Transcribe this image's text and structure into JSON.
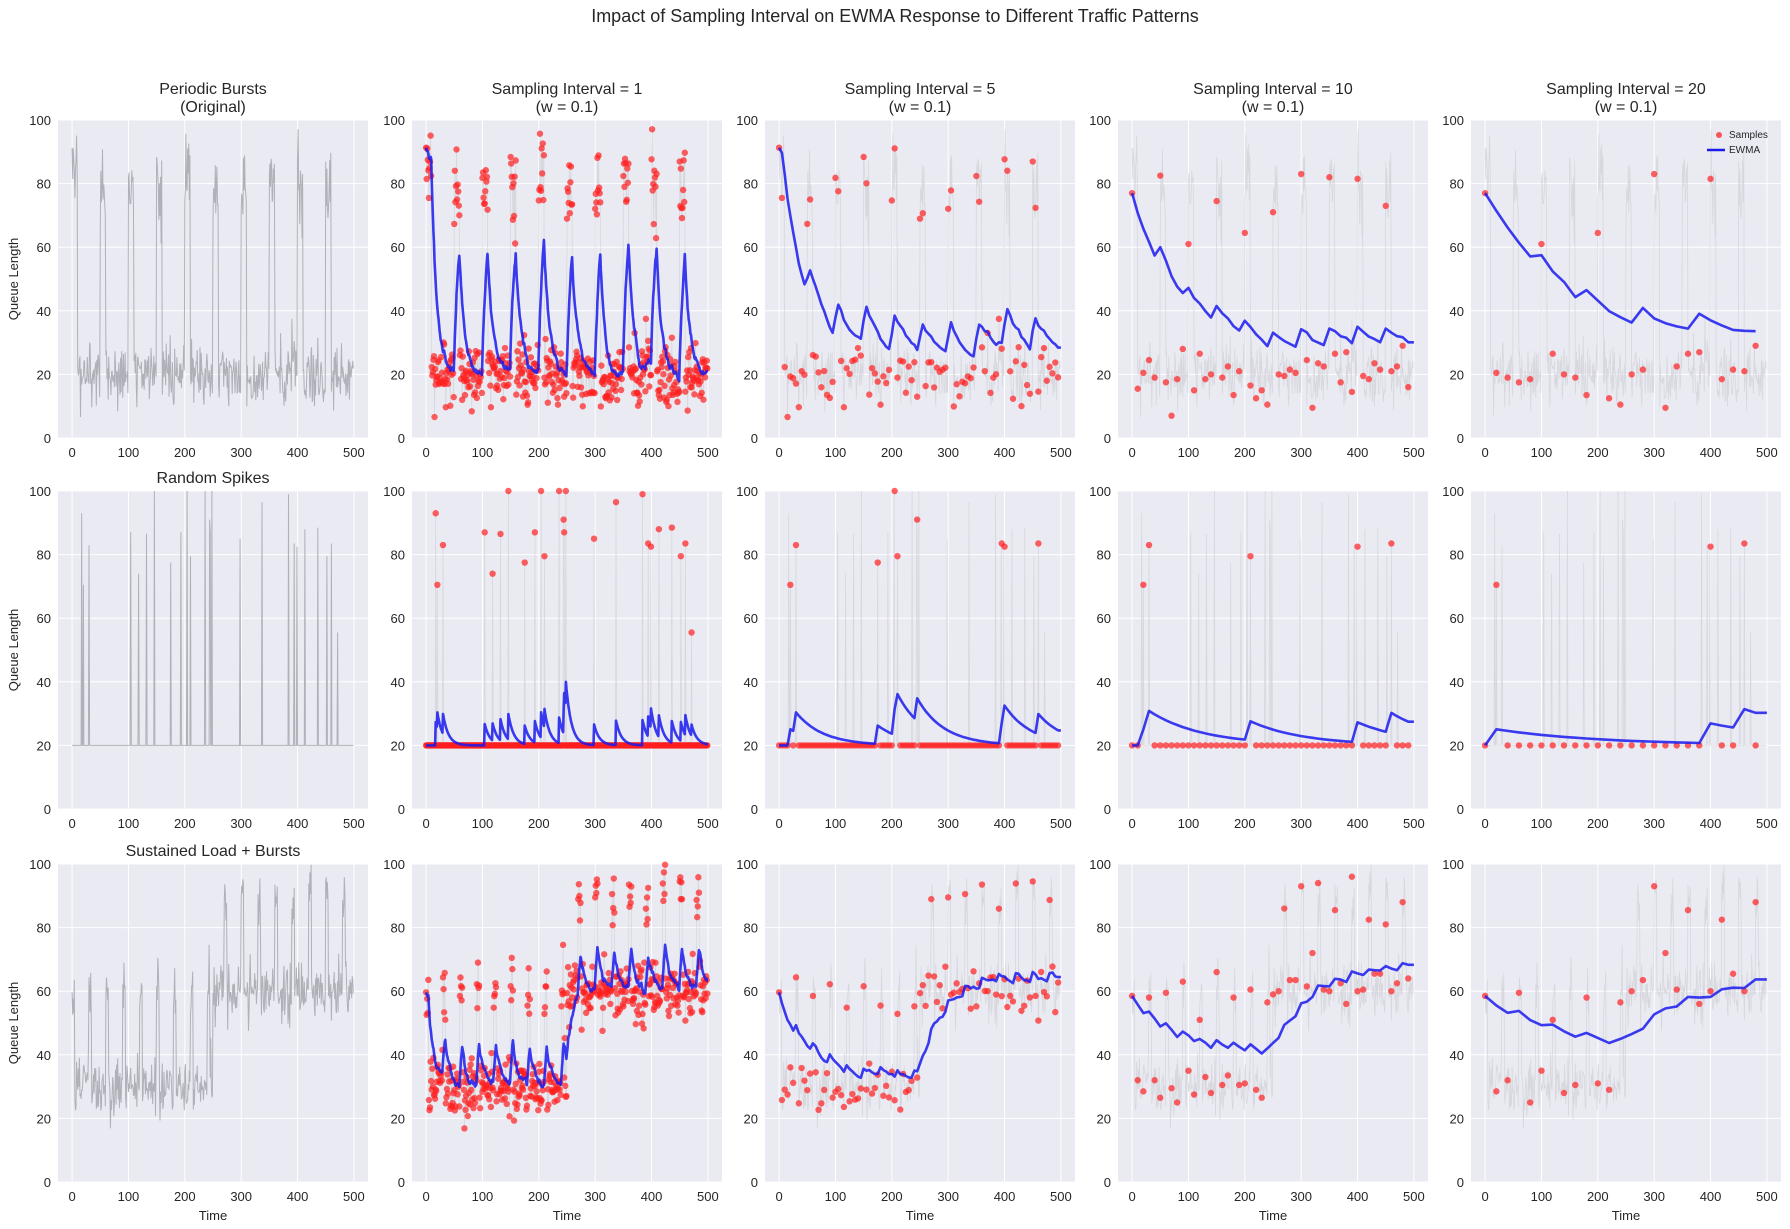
{
  "figure": {
    "title": "Impact of Sampling Interval on EWMA Response to Different Traffic Patterns"
  },
  "colors": {
    "background": "#eaeaf2",
    "grid": "#ffffff",
    "original": "#b0b0b8",
    "original_faint": "#cfcfd4",
    "samples": "#ff2020",
    "ewma": "#1a1aee"
  },
  "legend": {
    "samples_label": "Samples",
    "ewma_label": "EWMA",
    "placement": "top-right",
    "panel": "row0-col4"
  },
  "chart_data": {
    "type": "line",
    "layout": {
      "rows": 3,
      "cols": 5
    },
    "ewma_weight": 0.1,
    "xlim": [
      -25,
      525
    ],
    "ylim": [
      0,
      100
    ],
    "xticks": [
      0,
      100,
      200,
      300,
      400,
      500
    ],
    "yticks": [
      0,
      20,
      40,
      60,
      80,
      100
    ],
    "xlabel": "Time",
    "ylabel": "Queue Length",
    "column_titles": [
      null,
      "Sampling Interval = 1\n(w = 0.1)",
      "Sampling Interval = 5\n(w = 0.1)",
      "Sampling Interval = 10\n(w = 0.1)",
      "Sampling Interval = 20\n(w = 0.1)"
    ],
    "sampling_intervals": [
      1,
      5,
      10,
      20
    ],
    "patterns": [
      {
        "name": "Periodic Bursts",
        "title": "Periodic Bursts\n(Original)",
        "generator": {
          "kind": "periodic",
          "baseline": 20,
          "baseline_noise": 5,
          "burst_period": 50,
          "burst_length": 10,
          "burst_level": 80,
          "burst_noise": 8
        },
        "samples_interval_10": [
          [
            0,
            77
          ],
          [
            10,
            15.5
          ],
          [
            20,
            20.5
          ],
          [
            30,
            24.5
          ],
          [
            40,
            19
          ],
          [
            50,
            82.5
          ],
          [
            60,
            17.5
          ],
          [
            70,
            7
          ],
          [
            80,
            18.5
          ],
          [
            90,
            28
          ],
          [
            100,
            61
          ],
          [
            110,
            15
          ],
          [
            120,
            26.5
          ],
          [
            130,
            18.5
          ],
          [
            140,
            20
          ],
          [
            150,
            74.5
          ],
          [
            160,
            19
          ],
          [
            170,
            22.5
          ],
          [
            180,
            13.5
          ],
          [
            190,
            21
          ],
          [
            200,
            64.5
          ],
          [
            210,
            16.5
          ],
          [
            220,
            12.5
          ],
          [
            230,
            15
          ],
          [
            240,
            10.5
          ],
          [
            250,
            71
          ],
          [
            260,
            20
          ],
          [
            270,
            19.5
          ],
          [
            280,
            21.5
          ],
          [
            290,
            20.5
          ],
          [
            300,
            83
          ],
          [
            310,
            24.5
          ],
          [
            320,
            9.5
          ],
          [
            330,
            23.5
          ],
          [
            340,
            22.5
          ],
          [
            350,
            82
          ],
          [
            360,
            26.5
          ],
          [
            370,
            17.5
          ],
          [
            380,
            27
          ],
          [
            390,
            14.5
          ],
          [
            400,
            81.5
          ],
          [
            410,
            19.5
          ],
          [
            420,
            18.5
          ],
          [
            430,
            23.5
          ],
          [
            440,
            21.5
          ],
          [
            450,
            73
          ],
          [
            460,
            21
          ],
          [
            470,
            22.5
          ],
          [
            480,
            29
          ],
          [
            490,
            16
          ]
        ],
        "ewma_interval_10": [
          77,
          70.8,
          65.8,
          61.7,
          57.4,
          60.0,
          55.8,
          50.9,
          47.6,
          45.6,
          47.2,
          44.0,
          42.3,
          39.9,
          37.9,
          41.5,
          39.2,
          37.6,
          35.2,
          33.8,
          36.9,
          34.9,
          32.6,
          30.9,
          28.9,
          33.1,
          31.8,
          30.5,
          29.6,
          28.7,
          34.2,
          33.2,
          30.8,
          30.0,
          29.2,
          34.4,
          33.6,
          32.0,
          31.5,
          29.8,
          35.0,
          33.4,
          31.9,
          31.1,
          30.1,
          34.4,
          33.1,
          32.0,
          31.7,
          30.1,
          30.1
        ],
        "ewma_interval_20": [
          77,
          71.4,
          66.2,
          61.4,
          57.1,
          57.5,
          52.4,
          49.1,
          44.3,
          46.5,
          43.2,
          39.9,
          38.0,
          36.3,
          40.9,
          37.6,
          36.1,
          35.1,
          34.4,
          39.1,
          37.0,
          35.4,
          34.0,
          33.7,
          33.6
        ],
        "samples_interval_20": [
          [
            0,
            77
          ],
          [
            20,
            20.5
          ],
          [
            40,
            19
          ],
          [
            60,
            17.5
          ],
          [
            80,
            18.5
          ],
          [
            100,
            61
          ],
          [
            120,
            26.5
          ],
          [
            140,
            20
          ],
          [
            160,
            19
          ],
          [
            180,
            13.5
          ],
          [
            200,
            64.5
          ],
          [
            220,
            12.5
          ],
          [
            240,
            10.5
          ],
          [
            260,
            20
          ],
          [
            280,
            21.5
          ],
          [
            300,
            83
          ],
          [
            320,
            9.5
          ],
          [
            340,
            22.5
          ],
          [
            360,
            26.5
          ],
          [
            380,
            27
          ],
          [
            400,
            81.5
          ],
          [
            420,
            18.5
          ],
          [
            440,
            21.5
          ],
          [
            460,
            21
          ],
          [
            480,
            29
          ]
        ]
      },
      {
        "name": "Random Spikes",
        "title": "Random Spikes",
        "generator": {
          "kind": "spikes",
          "baseline": 20
        },
        "spikes": [
          [
            17,
            93
          ],
          [
            20,
            70.5
          ],
          [
            30,
            83
          ],
          [
            104,
            87
          ],
          [
            118,
            74
          ],
          [
            132,
            86.5
          ],
          [
            146,
            100
          ],
          [
            175,
            77.5
          ],
          [
            193,
            87
          ],
          [
            204,
            100
          ],
          [
            210,
            79.5
          ],
          [
            236,
            100
          ],
          [
            244,
            91
          ],
          [
            245,
            87
          ],
          [
            248,
            100
          ],
          [
            298,
            85
          ],
          [
            337,
            96.5
          ],
          [
            384,
            99
          ],
          [
            394,
            83.5
          ],
          [
            399,
            82.5
          ],
          [
            413,
            88
          ],
          [
            436,
            88.5
          ],
          [
            452,
            79.5
          ],
          [
            460,
            83.5
          ],
          [
            471,
            55.5
          ]
        ],
        "samples_interval_5_high": [
          [
            205,
            100
          ],
          [
            245,
            91
          ],
          [
            395,
            83.5
          ],
          [
            400,
            82.5
          ]
        ],
        "samples_interval_10_high": [
          [
            400,
            82.5
          ]
        ],
        "samples_interval_20_high": [
          [
            400,
            82.5
          ]
        ]
      },
      {
        "name": "Sustained Load + Bursts",
        "title": "Sustained Load + Bursts",
        "generator": {
          "kind": "sustained",
          "low_level": 30,
          "high_level": 60,
          "step_time": 250,
          "noise": 5,
          "burst_period": 30,
          "burst_length": 5,
          "burst_add": 30
        },
        "samples_interval_10": [
          [
            0,
            58.5
          ],
          [
            10,
            32
          ],
          [
            20,
            28.5
          ],
          [
            30,
            58
          ],
          [
            40,
            32
          ],
          [
            50,
            26.5
          ],
          [
            60,
            59.5
          ],
          [
            70,
            29.5
          ],
          [
            80,
            25
          ],
          [
            90,
            63
          ],
          [
            100,
            35
          ],
          [
            110,
            27.5
          ],
          [
            120,
            51
          ],
          [
            130,
            33
          ],
          [
            140,
            28
          ],
          [
            150,
            66
          ],
          [
            160,
            30.5
          ],
          [
            170,
            33.5
          ],
          [
            180,
            58
          ],
          [
            190,
            30.5
          ],
          [
            200,
            31
          ],
          [
            210,
            60.5
          ],
          [
            220,
            29
          ],
          [
            230,
            26.5
          ],
          [
            240,
            56.5
          ],
          [
            250,
            59
          ],
          [
            260,
            60
          ],
          [
            270,
            86
          ],
          [
            280,
            63.5
          ],
          [
            290,
            63.5
          ],
          [
            300,
            93
          ],
          [
            310,
            61.5
          ],
          [
            320,
            72
          ],
          [
            330,
            94
          ],
          [
            340,
            60.5
          ],
          [
            350,
            60
          ],
          [
            360,
            85.5
          ],
          [
            370,
            62.5
          ],
          [
            380,
            56
          ],
          [
            390,
            96
          ],
          [
            400,
            60
          ],
          [
            410,
            60.5
          ],
          [
            420,
            82.5
          ],
          [
            430,
            65.5
          ],
          [
            440,
            65.5
          ],
          [
            450,
            81
          ],
          [
            460,
            60
          ],
          [
            470,
            62.5
          ],
          [
            480,
            88
          ],
          [
            490,
            64
          ]
        ],
        "ewma_interval_10": [
          58.5,
          55.8,
          53.1,
          53.6,
          51.4,
          48.9,
          49.9,
          47.9,
          45.6,
          47.3,
          46.1,
          44.3,
          45.0,
          43.8,
          42.2,
          44.6,
          43.2,
          42.2,
          43.8,
          42.5,
          41.4,
          43.3,
          41.9,
          40.4,
          42.0,
          43.7,
          45.3,
          49.4,
          50.8,
          52.1,
          56.2,
          56.7,
          58.2,
          61.8,
          61.6,
          61.5,
          63.9,
          63.7,
          62.9,
          66.2,
          65.6,
          65.1,
          66.8,
          66.6,
          66.5,
          67.9,
          67.1,
          66.6,
          68.8,
          68.3,
          68.3
        ],
        "samples_interval_20": [
          [
            0,
            58.5
          ],
          [
            20,
            28.5
          ],
          [
            40,
            32
          ],
          [
            60,
            59.5
          ],
          [
            80,
            25
          ],
          [
            100,
            35
          ],
          [
            120,
            51
          ],
          [
            140,
            28
          ],
          [
            160,
            30.5
          ],
          [
            180,
            58
          ],
          [
            200,
            31
          ],
          [
            220,
            29
          ],
          [
            240,
            56.5
          ],
          [
            260,
            60
          ],
          [
            280,
            63.5
          ],
          [
            300,
            93
          ],
          [
            320,
            72
          ],
          [
            340,
            60.5
          ],
          [
            360,
            85.5
          ],
          [
            380,
            56
          ],
          [
            400,
            60
          ],
          [
            420,
            82.5
          ],
          [
            440,
            65.5
          ],
          [
            460,
            60
          ],
          [
            480,
            88
          ]
        ],
        "ewma_interval_20": [
          58.5,
          55.5,
          53.2,
          53.8,
          50.9,
          49.3,
          49.5,
          47.4,
          45.7,
          46.9,
          45.3,
          43.7,
          45.0,
          46.5,
          48.2,
          52.7,
          54.6,
          55.2,
          58.2,
          58.0,
          58.2,
          60.6,
          61.1,
          61.0,
          63.7,
          63.7
        ]
      }
    ]
  }
}
